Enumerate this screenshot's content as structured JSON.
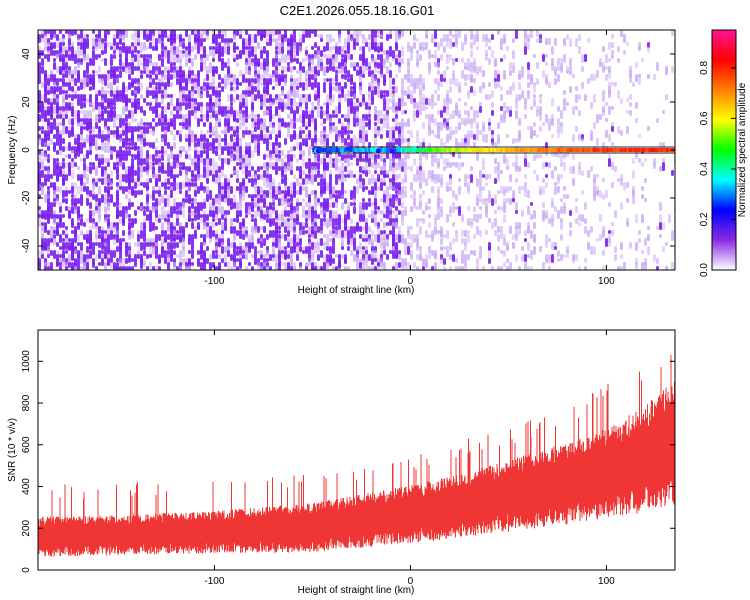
{
  "figure": {
    "title": "C2E1.2026.055.18.16.G01"
  },
  "chart_data": [
    {
      "type": "heatmap",
      "title": "C2E1.2026.055.18.16.G01",
      "xlabel": "Height of straight line (km)",
      "ylabel": "Frequency (Hz)",
      "xlim": [
        -190,
        135
      ],
      "ylim": [
        -50,
        50
      ],
      "xticks": [
        -100,
        0,
        100
      ],
      "yticks": [
        -40,
        -20,
        0,
        20,
        40
      ],
      "xtick_labels": [
        "-100",
        "0",
        "100"
      ],
      "ytick_labels": [
        "-40",
        "-20",
        "0",
        "20",
        "40"
      ],
      "signal_line_frequency_hz": 0,
      "signal_trace": {
        "x": [
          -50,
          -40,
          -30,
          -20,
          -10,
          0,
          20,
          40,
          60,
          80,
          100,
          120,
          135
        ],
        "amplitude": [
          0.25,
          0.25,
          0.3,
          0.35,
          0.3,
          0.4,
          0.55,
          0.62,
          0.7,
          0.75,
          0.78,
          0.8,
          0.8
        ]
      },
      "colorbar": {
        "label": "Normalized spectral amplitude",
        "range": [
          0.0,
          0.95
        ],
        "ticks": [
          0.0,
          0.2,
          0.4,
          0.6,
          0.8
        ],
        "tick_labels": [
          "0.0",
          "0.2",
          "0.4",
          "0.6",
          "0.8"
        ],
        "colormap": [
          "#ffffff",
          "#8a2be2",
          "#0000ff",
          "#00ffff",
          "#00ff00",
          "#ffff00",
          "#ff8000",
          "#ff0000",
          "#ff1493"
        ]
      }
    },
    {
      "type": "line",
      "xlabel": "Height of straight line (km)",
      "ylabel": "SNR (10 * v/v)",
      "xlim": [
        -190,
        135
      ],
      "ylim": [
        0,
        1150
      ],
      "xticks": [
        -100,
        0,
        100
      ],
      "yticks": [
        0,
        200,
        400,
        600,
        800,
        1000
      ],
      "xtick_labels": [
        "-100",
        "0",
        "100"
      ],
      "ytick_labels": [
        "0",
        "200",
        "400",
        "600",
        "800",
        "1000"
      ],
      "series": [
        {
          "name": "SNR",
          "color": "#f03535",
          "x": [
            -190,
            -150,
            -100,
            -50,
            0,
            25,
            50,
            75,
            100,
            115,
            125,
            135
          ],
          "mean": [
            160,
            170,
            185,
            205,
            270,
            310,
            360,
            410,
            470,
            520,
            570,
            620
          ],
          "spread": [
            90,
            90,
            95,
            110,
            130,
            140,
            160,
            180,
            200,
            230,
            250,
            280
          ],
          "max": [
            410,
            420,
            440,
            470,
            560,
            640,
            690,
            760,
            900,
            950,
            1000,
            1150
          ]
        }
      ]
    }
  ]
}
